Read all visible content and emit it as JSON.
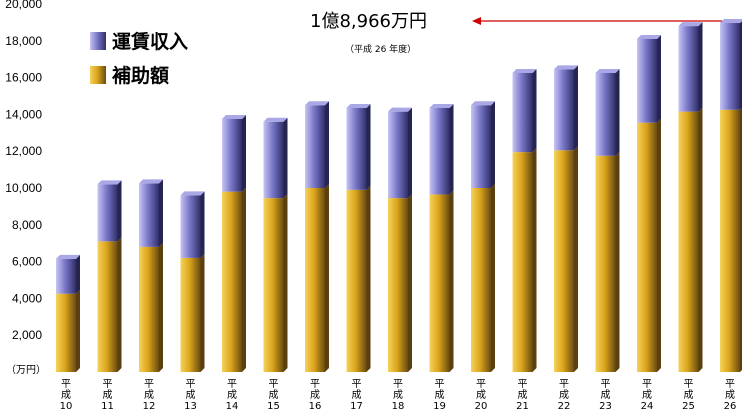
{
  "chart_data": {
    "type": "bar",
    "stacked": true,
    "categories": [
      [
        "平",
        "成",
        "10"
      ],
      [
        "平",
        "成",
        "11"
      ],
      [
        "平",
        "成",
        "12"
      ],
      [
        "平",
        "成",
        "13"
      ],
      [
        "平",
        "成",
        "14"
      ],
      [
        "平",
        "成",
        "15"
      ],
      [
        "平",
        "成",
        "16"
      ],
      [
        "平",
        "成",
        "17"
      ],
      [
        "平",
        "成",
        "18"
      ],
      [
        "平",
        "成",
        "19"
      ],
      [
        "平",
        "成",
        "20"
      ],
      [
        "平",
        "成",
        "21"
      ],
      [
        "平",
        "成",
        "22"
      ],
      [
        "平",
        "成",
        "23"
      ],
      [
        "平",
        "成",
        "24"
      ],
      [
        "平",
        "成",
        "25"
      ],
      [
        "平",
        "成",
        "26"
      ]
    ],
    "series": [
      {
        "name": "補助額",
        "color": "#d9a21a",
        "values": [
          4250,
          7100,
          6800,
          6200,
          9800,
          9450,
          10000,
          9900,
          9450,
          9650,
          10000,
          11950,
          12050,
          11750,
          13550,
          14150,
          14250
        ]
      },
      {
        "name": "運賃収入",
        "color": "#7a78c8",
        "values": [
          1900,
          3100,
          3450,
          3400,
          3950,
          4150,
          4500,
          4450,
          4700,
          4700,
          4500,
          4300,
          4400,
          4500,
          4550,
          4650,
          4716
        ]
      }
    ],
    "totals": [
      6150,
      10200,
      10250,
      9600,
      13750,
      13600,
      14500,
      14350,
      14150,
      14350,
      14500,
      16250,
      16450,
      16250,
      18100,
      18800,
      18966
    ],
    "ylim": [
      0,
      20000
    ],
    "yticks": [
      "2,000",
      "4,000",
      "6,000",
      "8,000",
      "10,000",
      "12,000",
      "14,000",
      "16,000",
      "18,000",
      "20,000"
    ],
    "ytick_values": [
      2000,
      4000,
      6000,
      8000,
      10000,
      12000,
      14000,
      16000,
      18000,
      20000
    ],
    "unit_label": "（万円）",
    "legend": {
      "placement": "top-left",
      "items": [
        {
          "label": "運賃収入",
          "color": "#7a78c8"
        },
        {
          "label": "補助額",
          "color": "#d9a21a"
        }
      ]
    },
    "annotation": {
      "text": "1億8,966万円",
      "subtext": "（平成 26 年度）",
      "arrow_color": "#cc0000",
      "target_category_index": 16
    },
    "grid": false
  }
}
